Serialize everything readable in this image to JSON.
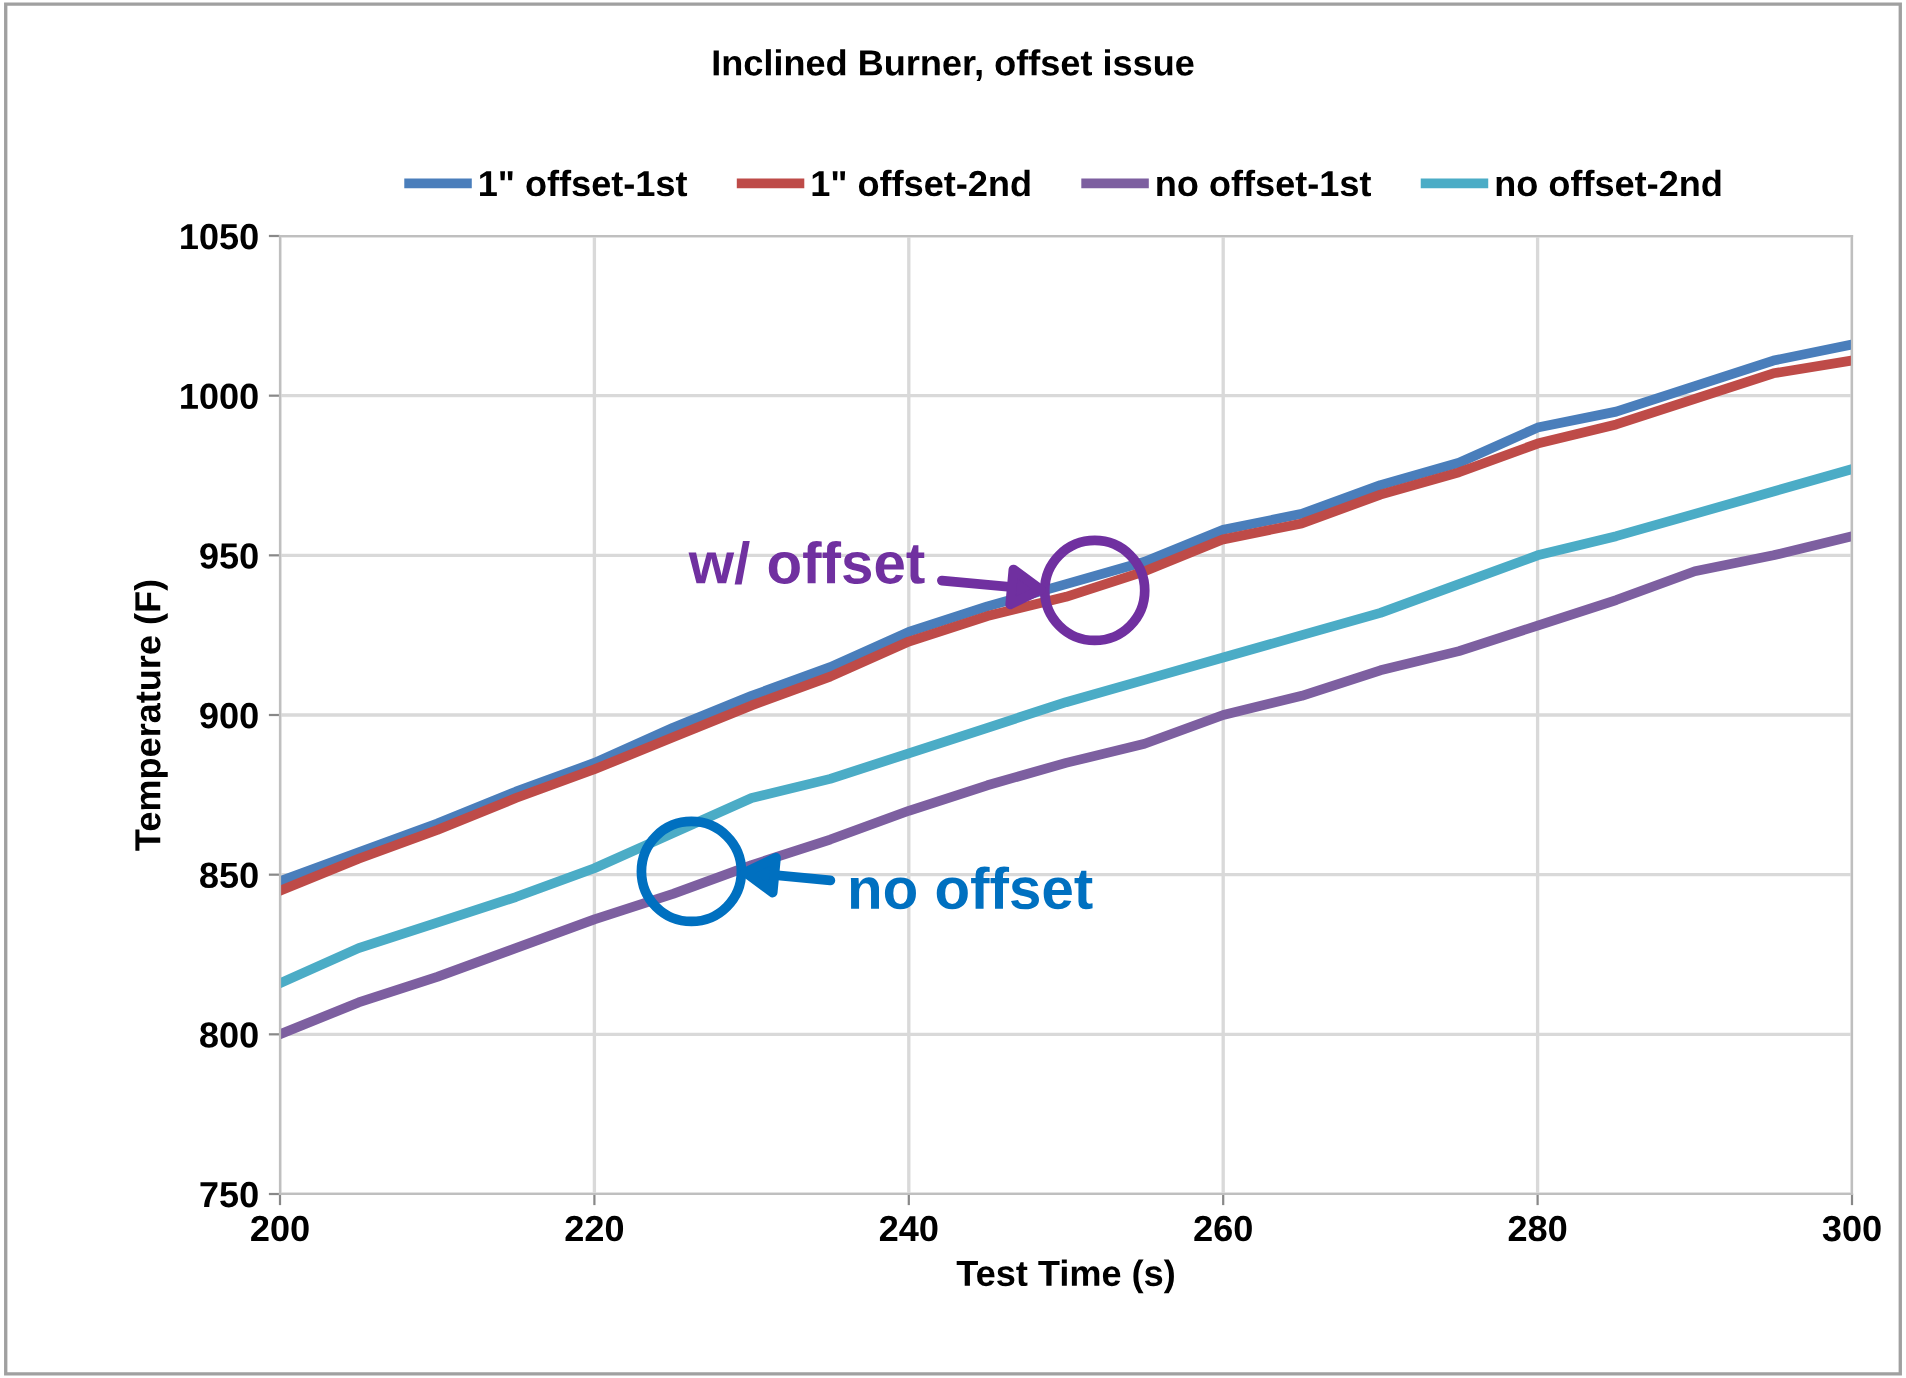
{
  "chart_data": {
    "type": "line",
    "title": "Inclined Burner, offset issue",
    "xlabel": "Test Time (s)",
    "ylabel": "Temperature (F)",
    "x": [
      200,
      205,
      210,
      215,
      220,
      225,
      230,
      235,
      240,
      245,
      250,
      255,
      260,
      265,
      270,
      275,
      280,
      285,
      290,
      295,
      300
    ],
    "series": [
      {
        "name": "1\" offset-1st",
        "color": "#4a7ebb",
        "values": [
          848,
          857,
          866,
          876,
          885,
          896,
          906,
          915,
          926,
          934,
          941,
          948,
          958,
          963,
          972,
          979,
          990,
          995,
          1003,
          1011,
          1016
        ]
      },
      {
        "name": "1\" offset-2nd",
        "color": "#be4b48",
        "values": [
          845,
          855,
          864,
          874,
          883,
          893,
          903,
          912,
          923,
          931,
          937,
          945,
          955,
          960,
          969,
          976,
          985,
          991,
          999,
          1007,
          1011
        ]
      },
      {
        "name": "no offset-1st",
        "color": "#7d5fa0",
        "values": [
          800,
          810,
          818,
          827,
          836,
          844,
          853,
          861,
          870,
          878,
          885,
          891,
          900,
          906,
          914,
          920,
          928,
          936,
          945,
          950,
          956
        ]
      },
      {
        "name": "no offset-2nd",
        "color": "#4bacc6",
        "values": [
          816,
          827,
          835,
          843,
          852,
          863,
          874,
          880,
          888,
          896,
          904,
          911,
          918,
          925,
          932,
          941,
          950,
          956,
          963,
          970,
          977
        ]
      }
    ],
    "annotations": [
      {
        "text": "w/ offset",
        "x": 249,
        "y": 939
      },
      {
        "text": "no offset",
        "x": 229,
        "y": 851
      }
    ],
    "xlim": [
      200,
      300
    ],
    "xticks": [
      200,
      220,
      240,
      260,
      280,
      300
    ],
    "ylim": [
      750,
      1050
    ],
    "yticks": [
      750,
      800,
      850,
      900,
      950,
      1000,
      1050
    ],
    "grid": true,
    "legend": "top",
    "marker": "none",
    "line_style": "solid"
  }
}
